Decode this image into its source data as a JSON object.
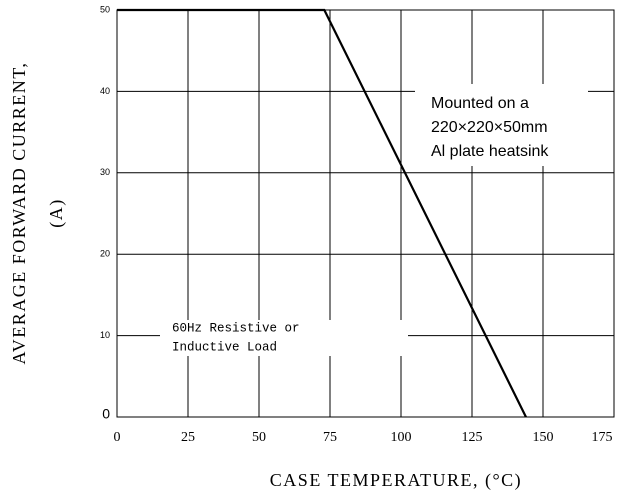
{
  "chart_data": {
    "type": "line",
    "x": [
      0,
      73,
      144
    ],
    "values": [
      50,
      50,
      0
    ],
    "color": "#000000",
    "xlim": [
      0,
      175
    ],
    "xticks": [
      0,
      25,
      50,
      75,
      100,
      125,
      150,
      175
    ],
    "ylim": [
      0,
      50
    ],
    "yticks": [
      0,
      10,
      20,
      30,
      40,
      50
    ],
    "grid": true,
    "xlabel": "CASE TEMPERATURE, (°C)",
    "ylabel": [
      "AVERAGE FORWARD CURRENT,",
      "(A)"
    ],
    "annotations": [
      [
        "Mounted on a",
        "220×220×50mm",
        "Al plate heatsink"
      ],
      [
        "60Hz Resistive or",
        "Inductive Load"
      ]
    ]
  }
}
